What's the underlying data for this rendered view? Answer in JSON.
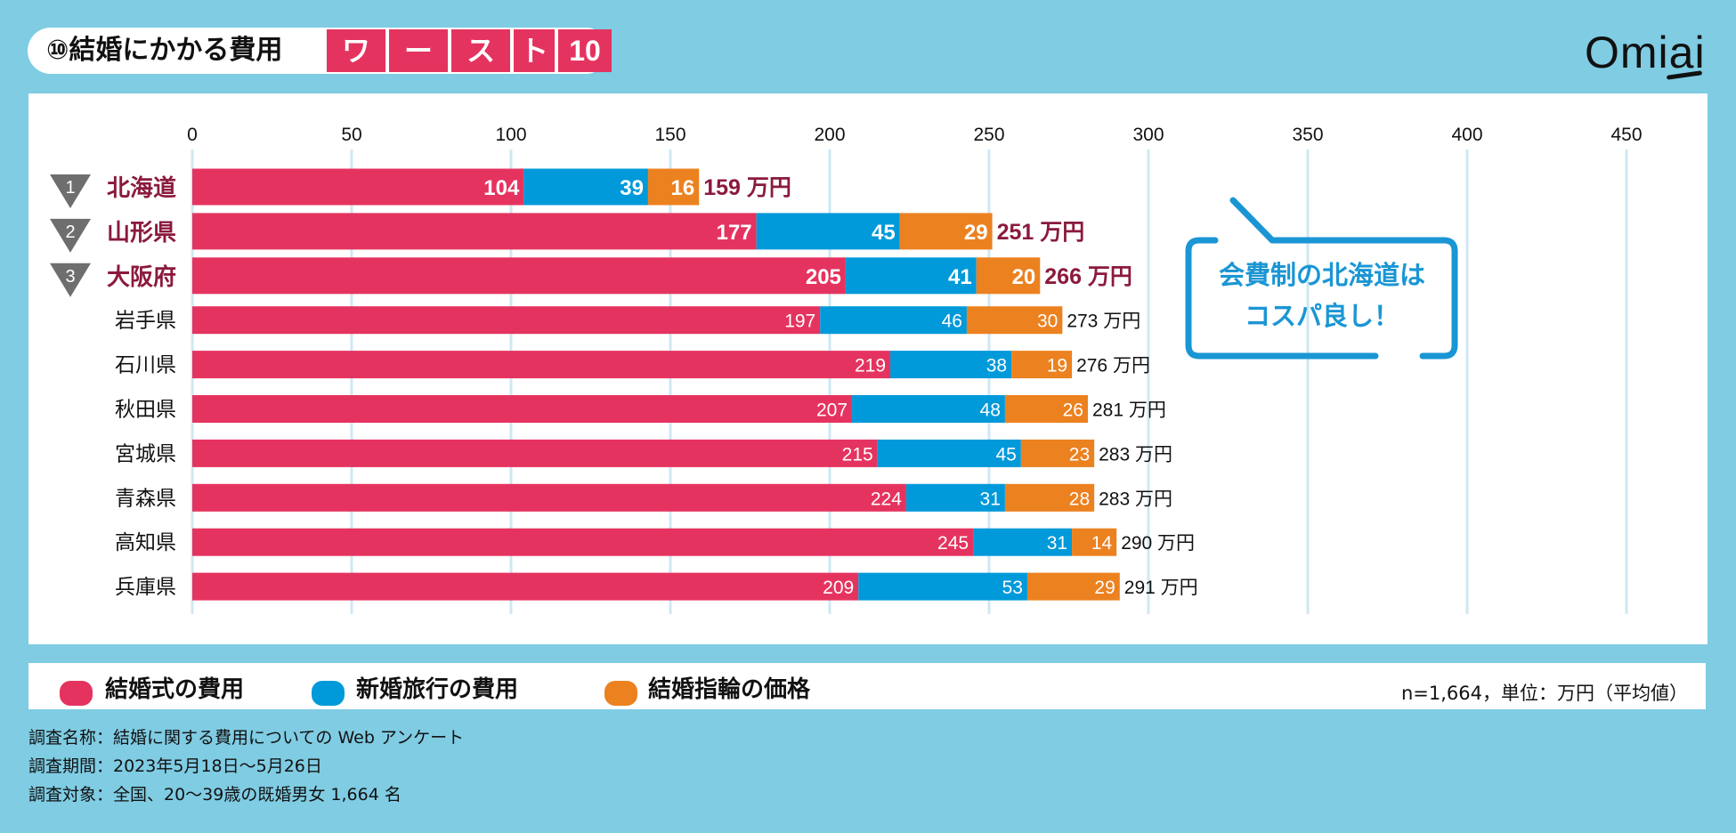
{
  "header": {
    "title": "⑩結婚にかかる費用",
    "title_highlight": [
      "ワ",
      "ー",
      "ス",
      "ト",
      "10"
    ],
    "logo": "Omiai"
  },
  "callout": {
    "line1": "会費制の北海道は",
    "line2": "コスパ良し！"
  },
  "legend": {
    "items": [
      {
        "label": "結婚式の費用",
        "color": "#e5335f"
      },
      {
        "label": "新婚旅行の費用",
        "color": "#0099d9"
      },
      {
        "label": "結婚指輪の価格",
        "color": "#ec8120"
      }
    ],
    "note": "n=1,664，単位：万円（平均値）"
  },
  "footer": {
    "line1": "調査名称：結婚に関する費用についての Web アンケート",
    "line2": "調査期間：2023年5月18日〜5月26日",
    "line3": "調査対象：全国、20〜39歳の既婚男女 1,664 名"
  },
  "chart_data": {
    "type": "bar",
    "orientation": "horizontal",
    "stacked": true,
    "xlim": [
      0,
      450
    ],
    "x_ticks": [
      "0",
      "50",
      "100",
      "150",
      "200",
      "250",
      "300",
      "350",
      "400",
      "450"
    ],
    "grid": true,
    "categories": [
      "北海道",
      "山形県",
      "大阪府",
      "岩手県",
      "石川県",
      "秋田県",
      "宮城県",
      "青森県",
      "高知県",
      "兵庫県"
    ],
    "ranks": [
      "1",
      "2",
      "3"
    ],
    "series": [
      {
        "name": "結婚式の費用",
        "color": "#e5335f",
        "values": [
          104,
          177,
          205,
          197,
          219,
          207,
          215,
          224,
          245,
          209
        ]
      },
      {
        "name": "新婚旅行の費用",
        "color": "#0099d9",
        "values": [
          39,
          45,
          41,
          46,
          38,
          48,
          45,
          31,
          31,
          53
        ]
      },
      {
        "name": "結婚指輪の価格",
        "color": "#ec8120",
        "values": [
          16,
          29,
          20,
          30,
          19,
          26,
          23,
          28,
          14,
          29
        ]
      }
    ],
    "totals": [
      "159 万円",
      "251 万円",
      "266 万円",
      "273 万円",
      "276 万円",
      "281 万円",
      "283 万円",
      "283 万円",
      "290 万円",
      "291 万円"
    ],
    "highlight_color": "#8b1a3c"
  }
}
